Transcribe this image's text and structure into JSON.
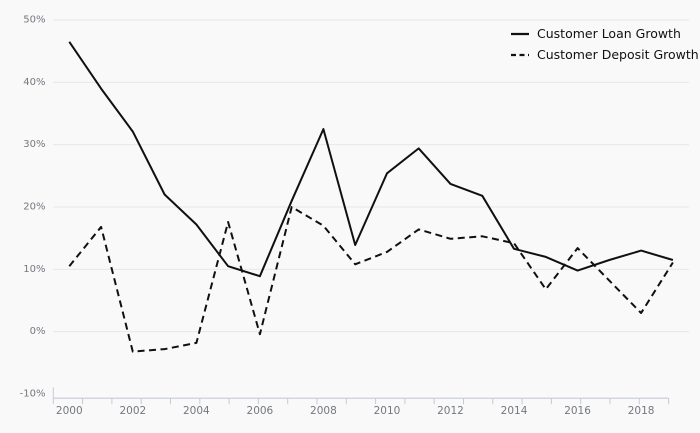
{
  "chart_data": {
    "type": "line",
    "title": "",
    "xlabel": "",
    "ylabel": "",
    "x": [
      2000,
      2001,
      2002,
      2003,
      2004,
      2005,
      2006,
      2007,
      2008,
      2009,
      2010,
      2011,
      2012,
      2013,
      2014,
      2015,
      2016,
      2017,
      2018,
      2019
    ],
    "series": [
      {
        "name": "Customer Loan Growth",
        "style": "solid",
        "values": [
          46.5,
          39.0,
          32.1,
          22.0,
          17.2,
          10.5,
          8.9,
          21.0,
          32.5,
          13.9,
          25.4,
          29.4,
          23.7,
          21.8,
          13.3,
          12.0,
          9.8,
          11.5,
          13.0,
          11.5
        ]
      },
      {
        "name": "Customer Deposit Growth",
        "style": "dashed",
        "values": [
          10.5,
          16.8,
          -3.2,
          -2.8,
          -1.8,
          17.6,
          -0.4,
          20.0,
          17.0,
          10.8,
          12.8,
          16.4,
          14.9,
          15.3,
          14.2,
          6.8,
          13.4,
          8.2,
          3.0,
          11.1
        ]
      }
    ],
    "ylim": [
      -10,
      50
    ],
    "y_ticks": [
      -10,
      0,
      10,
      20,
      30,
      40,
      50
    ],
    "y_tick_labels": [
      "-10%",
      "0%",
      "10%",
      "20%",
      "30%",
      "40%",
      "50%"
    ],
    "x_tick_labels": [
      "2000",
      "2002",
      "2004",
      "2006",
      "2008",
      "2010",
      "2012",
      "2014",
      "2016",
      "2018"
    ],
    "grid": "horizontal",
    "legend_position": "top-right",
    "colors": {
      "background": "#f9f9f9",
      "line": "#101010",
      "grid": "#e8e8e8",
      "axis": "#c5cad9",
      "tick_label": "#74787f",
      "legend_text": "#111111"
    }
  }
}
